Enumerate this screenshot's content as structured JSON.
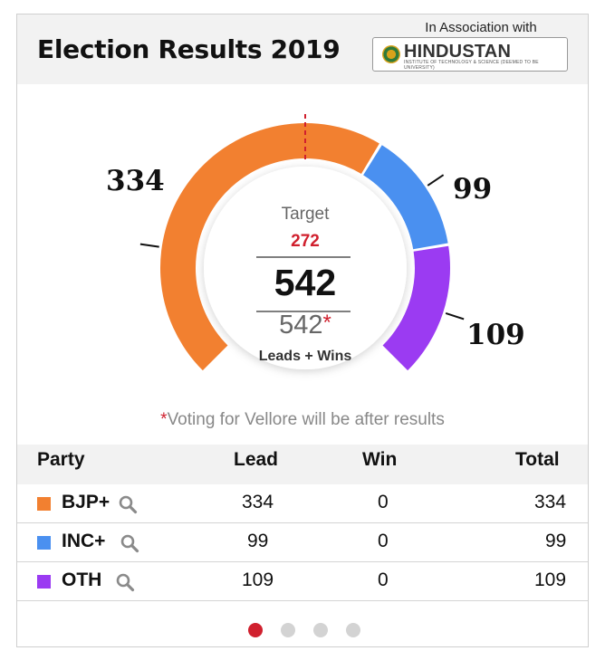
{
  "header": {
    "title": "Election Results 2019",
    "association_text": "In Association with",
    "sponsor_name": "HINDUSTAN",
    "sponsor_subtitle": "INSTITUTE OF TECHNOLOGY & SCIENCE (DEEMED TO BE UNIVERSITY)"
  },
  "gauge": {
    "target_label": "Target",
    "target_value": "272",
    "total_value": "542",
    "declared_value": "542",
    "declared_star": "*",
    "leads_wins_label": "Leads + Wins",
    "segments": [
      {
        "party": "BJP+",
        "value": 334,
        "label": "334",
        "color": "#f28030"
      },
      {
        "party": "INC+",
        "value": 99,
        "label": "99",
        "color": "#4a90f0"
      },
      {
        "party": "OTH",
        "value": 109,
        "label": "109",
        "color": "#9b3bf2"
      }
    ],
    "target_marker_color": "#d0202e"
  },
  "note": {
    "star": "*",
    "text": "Voting for Vellore will be after results"
  },
  "table": {
    "headers": {
      "party": "Party",
      "lead": "Lead",
      "win": "Win",
      "total": "Total"
    },
    "rows": [
      {
        "party": "BJP+",
        "color": "#f28030",
        "lead": "334",
        "win": "0",
        "total": "334",
        "icon": "search-icon"
      },
      {
        "party": "INC+",
        "color": "#4a90f0",
        "lead": "99",
        "win": "0",
        "total": "99",
        "icon": "search-icon"
      },
      {
        "party": "OTH",
        "color": "#9b3bf2",
        "lead": "109",
        "win": "0",
        "total": "109",
        "icon": "search-icon"
      }
    ]
  },
  "pagination": {
    "pages": 4,
    "active_index": 0,
    "active_color": "#d0202e",
    "inactive_color": "#d3d3d3"
  }
}
